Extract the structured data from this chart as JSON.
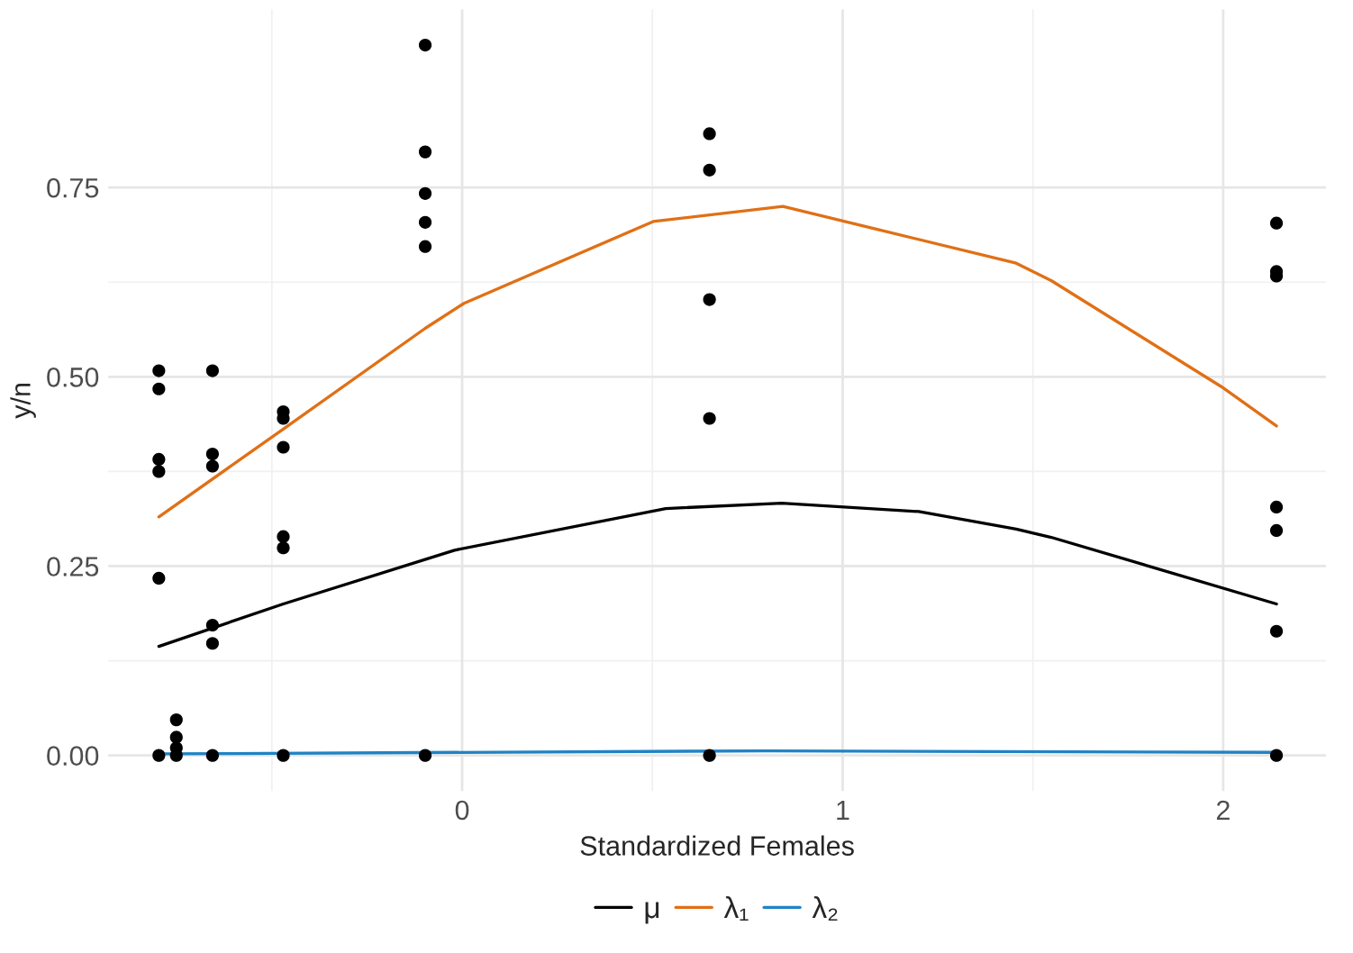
{
  "chart_data": {
    "type": "line",
    "xlabel": "Standardized Females",
    "ylabel": "y/n",
    "xlim": [
      -0.93,
      2.27
    ],
    "ylim": [
      -0.047,
      0.985
    ],
    "xticks": [
      0,
      1,
      2
    ],
    "yticks": [
      {
        "value": 0,
        "label": "0.00"
      },
      {
        "value": 0.25,
        "label": "0.25"
      },
      {
        "value": 0.5,
        "label": "0.50"
      },
      {
        "value": 0.75,
        "label": "0.75"
      }
    ],
    "grid": true,
    "legend": "bottom",
    "series": [
      {
        "type": "scatter",
        "color": "#000000",
        "marker": "circle",
        "x": [
          -0.797,
          -0.797,
          -0.797,
          -0.797,
          -0.797,
          -0.797,
          -0.751,
          -0.751,
          -0.751,
          -0.751,
          -0.656,
          -0.656,
          -0.656,
          -0.656,
          -0.656,
          -0.656,
          -0.47,
          -0.47,
          -0.47,
          -0.47,
          -0.47,
          -0.47,
          -0.097,
          -0.097,
          -0.097,
          -0.097,
          -0.097,
          -0.097,
          0.65,
          0.65,
          0.65,
          0.65,
          0.65,
          2.14,
          2.14,
          2.14,
          2.14,
          2.14,
          2.14,
          2.14
        ],
        "values": [
          0.508,
          0.484,
          0.391,
          0.375,
          0.234,
          0,
          0.047,
          0.024,
          0.01,
          0,
          0.508,
          0.398,
          0.382,
          0.172,
          0.148,
          0,
          0.454,
          0.445,
          0.407,
          0.289,
          0.274,
          0,
          0.938,
          0.797,
          0.742,
          0.704,
          0.672,
          0,
          0.821,
          0.773,
          0.602,
          0.445,
          0,
          0.703,
          0.639,
          0.633,
          0.328,
          0.297,
          0.164,
          0
        ]
      },
      {
        "name": "μ",
        "color": "#000000",
        "x": [
          -0.797,
          -0.47,
          -0.02,
          0.535,
          0.84,
          1.2,
          1.456,
          1.548,
          2.14
        ],
        "values": [
          0.144,
          0.2,
          0.271,
          0.326,
          0.333,
          0.322,
          0.299,
          0.288,
          0.2
        ]
      },
      {
        "name": "λ₁",
        "color": "#e07016",
        "x": [
          -0.797,
          -0.47,
          -0.097,
          0.005,
          0.502,
          0.843,
          1.456,
          1.548,
          1.995,
          2.14
        ],
        "values": [
          0.315,
          0.431,
          0.564,
          0.597,
          0.705,
          0.725,
          0.65,
          0.627,
          0.487,
          0.435
        ]
      },
      {
        "name": "λ₂",
        "color": "#1f83c4",
        "x": [
          -0.797,
          0.8,
          2.14
        ],
        "values": [
          0.002,
          0.006,
          0.004
        ]
      }
    ]
  }
}
